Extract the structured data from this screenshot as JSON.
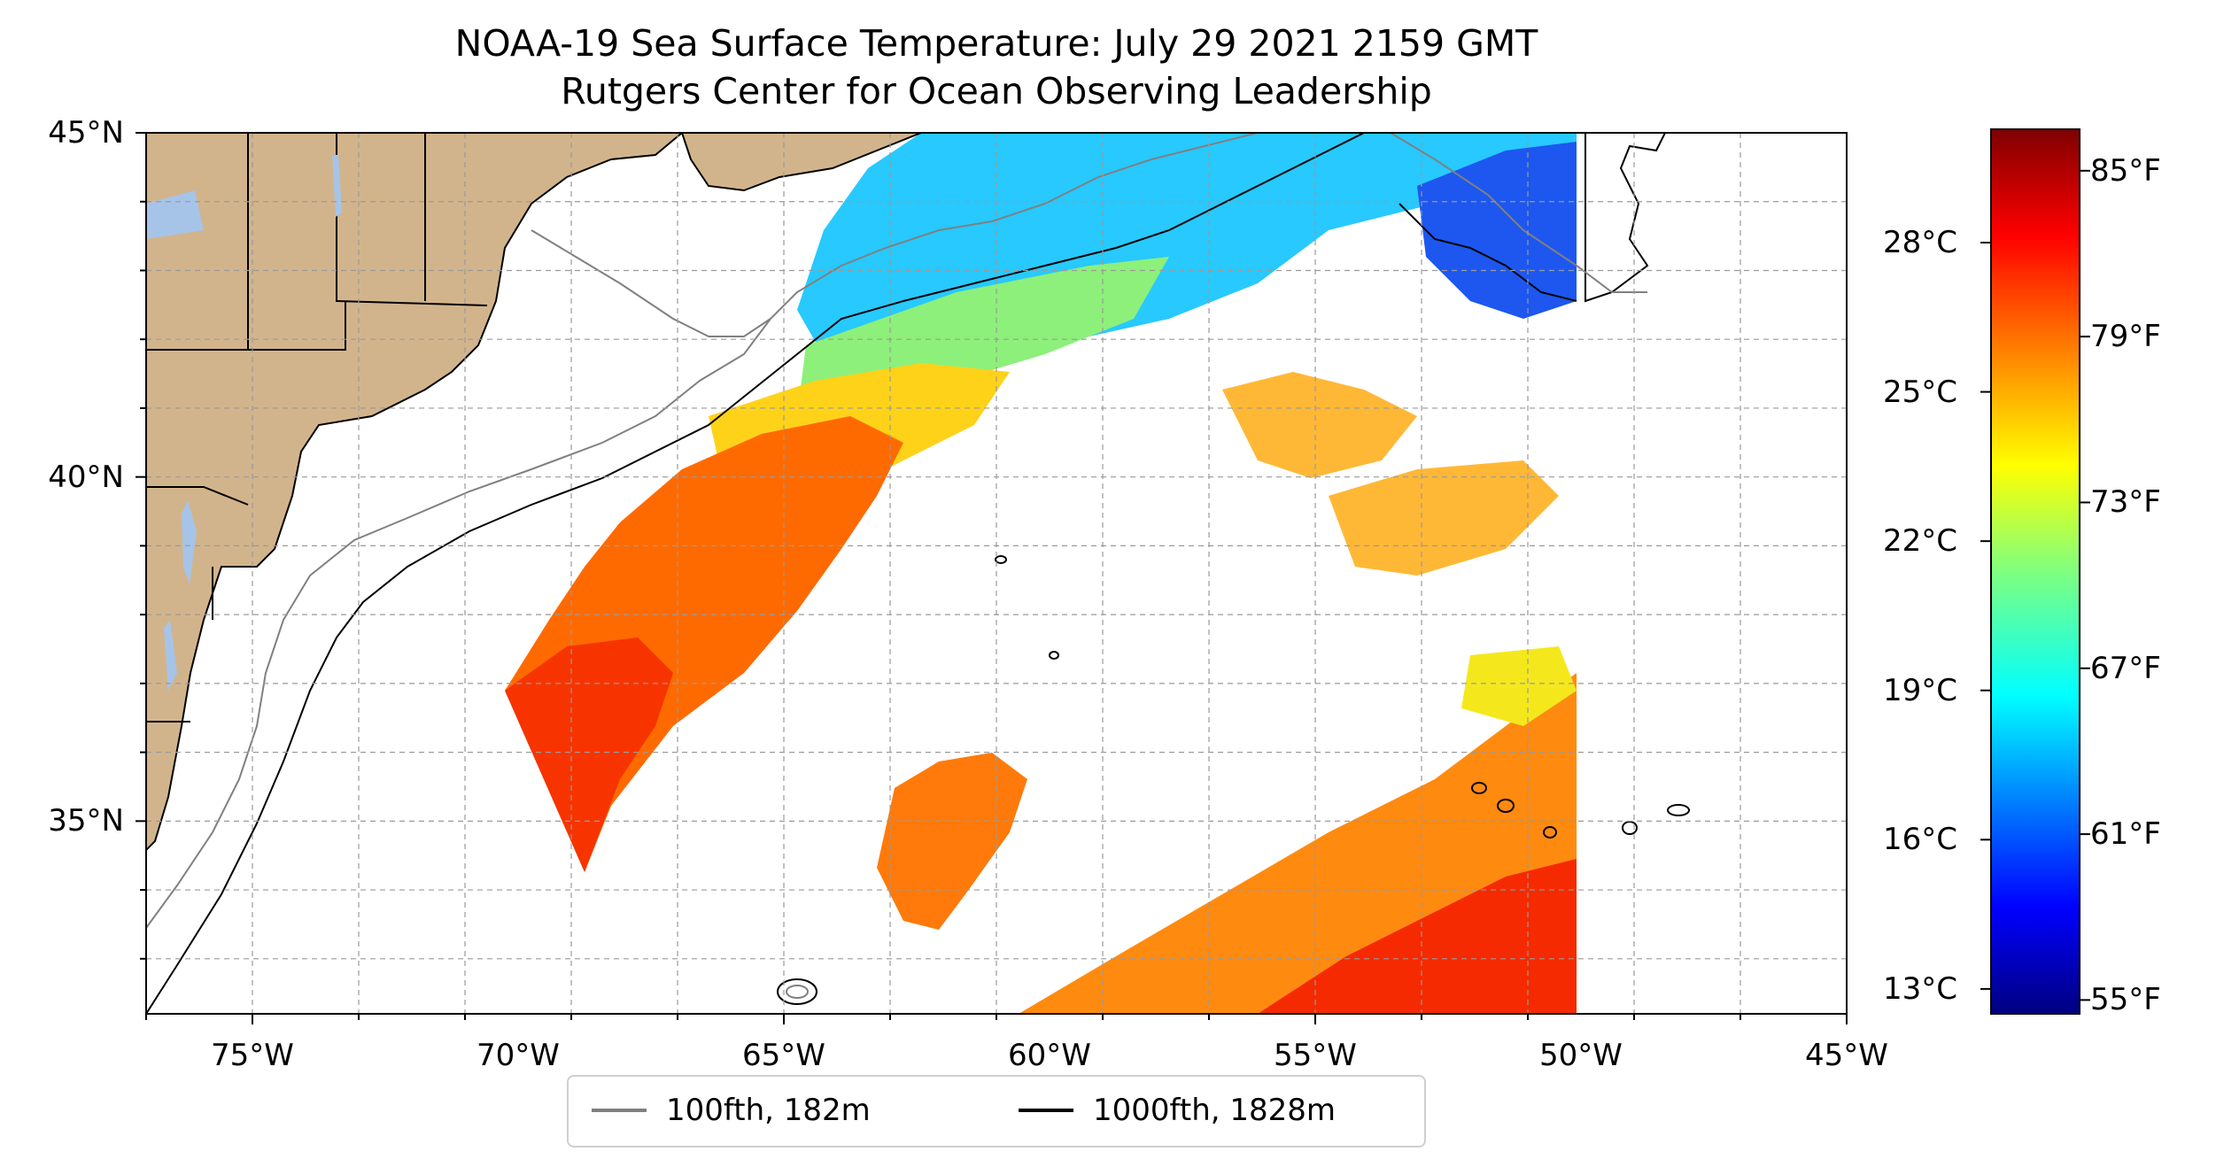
{
  "title": {
    "line1": "NOAA-19 Sea Surface Temperature: July 29 2021 2159 GMT",
    "line2": "Rutgers Center for Ocean Observing Leadership"
  },
  "map": {
    "extent": {
      "lon_min": -77,
      "lon_max": -45,
      "lat_min": 32.2,
      "lat_max": 45
    },
    "lat_ticks": [
      {
        "value": 45,
        "label": "45°N"
      },
      {
        "value": 40,
        "label": "40°N"
      },
      {
        "value": 35,
        "label": "35°N"
      }
    ],
    "lon_ticks": [
      {
        "value": -75,
        "label": "75°W"
      },
      {
        "value": -70,
        "label": "70°W"
      },
      {
        "value": -65,
        "label": "65°W"
      },
      {
        "value": -60,
        "label": "60°W"
      },
      {
        "value": -55,
        "label": "55°W"
      },
      {
        "value": -50,
        "label": "50°W"
      },
      {
        "value": -45,
        "label": "45°W"
      }
    ],
    "gridlines": true,
    "land_color": "#d2b48c",
    "water_color": "#a6c4e8",
    "isobath_100_color": "#808080",
    "isobath_1000_color": "#000000"
  },
  "colorbar": {
    "colormap": "jet",
    "celsius_ticks": [
      "28°C",
      "25°C",
      "22°C",
      "19°C",
      "16°C",
      "13°C"
    ],
    "fahrenheit_ticks": [
      "85°F",
      "79°F",
      "73°F",
      "67°F",
      "61°F",
      "55°F"
    ],
    "range_f": [
      54.5,
      86.5
    ]
  },
  "legend": {
    "items": [
      {
        "label": "100fth, 182m",
        "color": "#808080"
      },
      {
        "label": "1000fth, 1828m",
        "color": "#000000"
      }
    ]
  }
}
